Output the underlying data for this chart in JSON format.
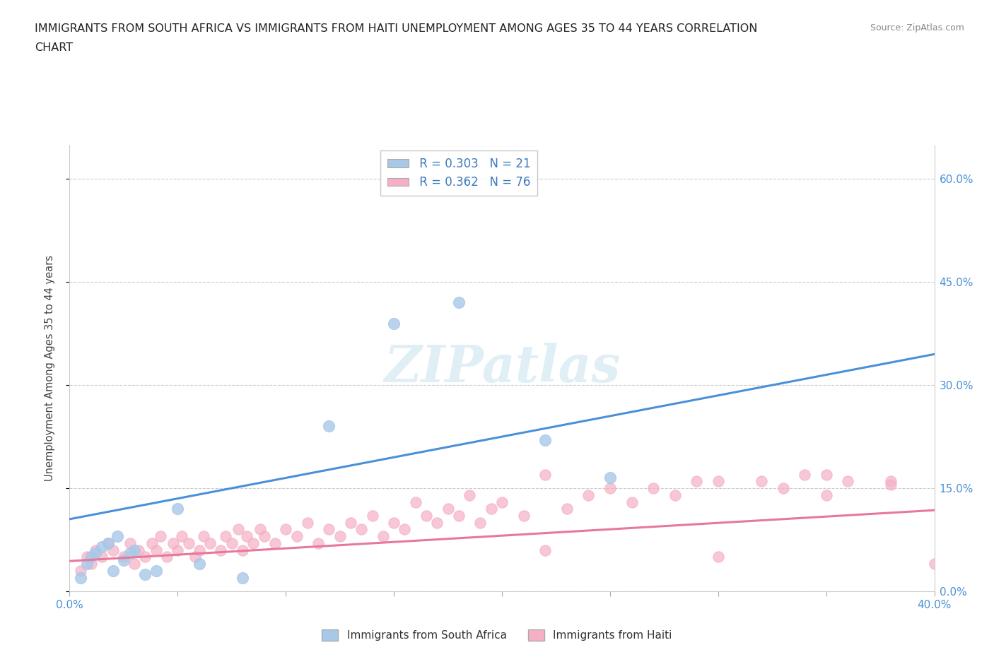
{
  "title_line1": "IMMIGRANTS FROM SOUTH AFRICA VS IMMIGRANTS FROM HAITI UNEMPLOYMENT AMONG AGES 35 TO 44 YEARS CORRELATION",
  "title_line2": "CHART",
  "source": "Source: ZipAtlas.com",
  "ylabel": "Unemployment Among Ages 35 to 44 years",
  "xlim": [
    0.0,
    0.4
  ],
  "ylim": [
    0.0,
    0.65
  ],
  "xticks": [
    0.0,
    0.05,
    0.1,
    0.15,
    0.2,
    0.25,
    0.3,
    0.35,
    0.4
  ],
  "ytick_positions": [
    0.0,
    0.15,
    0.3,
    0.45,
    0.6
  ],
  "ytick_labels": [
    "0.0%",
    "15.0%",
    "30.0%",
    "45.0%",
    "60.0%"
  ],
  "xtick_labels_show": [
    "0.0%",
    "40.0%"
  ],
  "south_africa_color": "#a8c8e8",
  "haiti_color": "#f5b0c5",
  "sa_line_color": "#4a90d9",
  "haiti_line_color": "#e8789a",
  "sa_R": 0.303,
  "sa_N": 21,
  "haiti_R": 0.362,
  "haiti_N": 76,
  "sa_line_x0": 0.0,
  "sa_line_y0": 0.105,
  "sa_line_x1": 0.4,
  "sa_line_y1": 0.345,
  "haiti_line_x0": 0.0,
  "haiti_line_y0": 0.044,
  "haiti_line_x1": 0.4,
  "haiti_line_y1": 0.118,
  "sa_points_x": [
    0.005,
    0.008,
    0.01,
    0.012,
    0.015,
    0.018,
    0.02,
    0.022,
    0.025,
    0.028,
    0.03,
    0.035,
    0.04,
    0.05,
    0.06,
    0.08,
    0.12,
    0.15,
    0.18,
    0.22,
    0.25
  ],
  "sa_points_y": [
    0.02,
    0.04,
    0.05,
    0.055,
    0.065,
    0.07,
    0.03,
    0.08,
    0.045,
    0.055,
    0.06,
    0.025,
    0.03,
    0.12,
    0.04,
    0.02,
    0.24,
    0.39,
    0.42,
    0.22,
    0.165
  ],
  "haiti_points_x": [
    0.005,
    0.008,
    0.01,
    0.012,
    0.015,
    0.018,
    0.02,
    0.025,
    0.028,
    0.03,
    0.032,
    0.035,
    0.038,
    0.04,
    0.042,
    0.045,
    0.048,
    0.05,
    0.052,
    0.055,
    0.058,
    0.06,
    0.062,
    0.065,
    0.07,
    0.072,
    0.075,
    0.078,
    0.08,
    0.082,
    0.085,
    0.088,
    0.09,
    0.095,
    0.1,
    0.105,
    0.11,
    0.115,
    0.12,
    0.125,
    0.13,
    0.135,
    0.14,
    0.145,
    0.15,
    0.155,
    0.16,
    0.165,
    0.17,
    0.175,
    0.18,
    0.185,
    0.19,
    0.195,
    0.2,
    0.21,
    0.22,
    0.23,
    0.24,
    0.25,
    0.26,
    0.27,
    0.28,
    0.29,
    0.3,
    0.32,
    0.33,
    0.34,
    0.35,
    0.36,
    0.38,
    0.22,
    0.3,
    0.35,
    0.38,
    0.4
  ],
  "haiti_points_y": [
    0.03,
    0.05,
    0.04,
    0.06,
    0.05,
    0.07,
    0.06,
    0.05,
    0.07,
    0.04,
    0.06,
    0.05,
    0.07,
    0.06,
    0.08,
    0.05,
    0.07,
    0.06,
    0.08,
    0.07,
    0.05,
    0.06,
    0.08,
    0.07,
    0.06,
    0.08,
    0.07,
    0.09,
    0.06,
    0.08,
    0.07,
    0.09,
    0.08,
    0.07,
    0.09,
    0.08,
    0.1,
    0.07,
    0.09,
    0.08,
    0.1,
    0.09,
    0.11,
    0.08,
    0.1,
    0.09,
    0.13,
    0.11,
    0.1,
    0.12,
    0.11,
    0.14,
    0.1,
    0.12,
    0.13,
    0.11,
    0.17,
    0.12,
    0.14,
    0.15,
    0.13,
    0.15,
    0.14,
    0.16,
    0.16,
    0.16,
    0.15,
    0.17,
    0.17,
    0.16,
    0.16,
    0.06,
    0.05,
    0.14,
    0.155,
    0.04
  ]
}
